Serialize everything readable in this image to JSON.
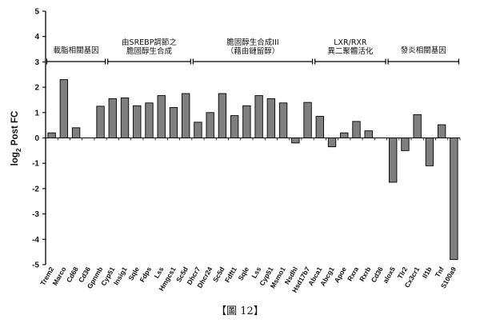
{
  "caption": "【圖 12】",
  "chart_data": {
    "type": "bar",
    "title": "",
    "xlabel": "",
    "ylabel_parts": [
      "log",
      "2",
      " Post FC"
    ],
    "ylim": [
      -5,
      5
    ],
    "yticks": [
      -5,
      -4,
      -3,
      -2,
      -1,
      0,
      1,
      2,
      3,
      4,
      5
    ],
    "grid": false,
    "bar_color": "#7f7f7f",
    "categories": [
      "Trem2",
      "Marco",
      "Cd68",
      "Cd36",
      "Gpnmb",
      "Cyp51",
      "Insig1",
      "Sqle",
      "Fdps",
      "Lss",
      "Hmgcs1",
      "Sc5d",
      "Dhcr7",
      "Dhcr24",
      "Sc5d",
      "Fdft1",
      "Sqle",
      "Lss",
      "Cyp51",
      "Msmo1",
      "Nsdhl",
      "Hsd17b7",
      "Abca1",
      "Abcg1",
      "Apoe",
      "Rxra",
      "Rxrb",
      "Cd36",
      "alox5",
      "Tlr2",
      "Cx3cr1",
      "Il1b",
      "Tnf",
      "S100a9"
    ],
    "values": [
      0.2,
      2.3,
      0.4,
      0.0,
      1.25,
      1.55,
      1.58,
      1.27,
      1.38,
      1.67,
      1.2,
      1.75,
      0.62,
      1.0,
      1.75,
      0.88,
      1.27,
      1.67,
      1.55,
      1.38,
      -0.2,
      1.4,
      0.85,
      -0.35,
      0.2,
      0.65,
      0.28,
      0.0,
      -1.75,
      -0.5,
      0.92,
      -1.1,
      0.52,
      -4.8
    ],
    "groups": [
      {
        "label_lines": [
          "載脂相關基因"
        ],
        "start": 0,
        "end": 4
      },
      {
        "label_lines": [
          "由SREBP調節之",
          "膽固醇生合成"
        ],
        "start": 5,
        "end": 11
      },
      {
        "label_lines": [
          "膽固醇生合成III",
          "（藉由鏈留醇）"
        ],
        "start": 12,
        "end": 21
      },
      {
        "label_lines": [
          "LXR/RXR",
          "異二聚體活化"
        ],
        "start": 22,
        "end": 27
      },
      {
        "label_lines": [
          "發炎相關基因"
        ],
        "start": 28,
        "end": 33
      }
    ]
  }
}
